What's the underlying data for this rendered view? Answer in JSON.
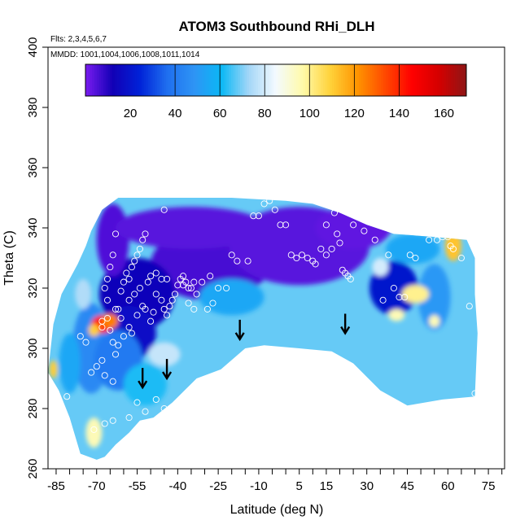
{
  "chart_data": {
    "type": "heatmap",
    "title": "ATOM3 Southbound RHi_DLH",
    "subtitle_flights": "Flts: 2,3,4,5,6,7",
    "subtitle_dates": "MMDD: 1001,1004,1006,1008,1011,1014",
    "xlabel": "Latitude (deg N)",
    "ylabel": "Theta (C)",
    "xlim": [
      -88,
      81
    ],
    "ylim": [
      260,
      400
    ],
    "x_tick_labels": [
      "-85",
      "-70",
      "-55",
      "-40",
      "-25",
      "-10",
      "5",
      "15",
      "30",
      "45",
      "60",
      "75"
    ],
    "x_tick_values": [
      -85,
      -70,
      -55,
      -40,
      -25,
      -10,
      5,
      15,
      30,
      45,
      60,
      75
    ],
    "x_minor_ticks": [
      -85,
      -80,
      -75,
      -70,
      -65,
      -60,
      -55,
      -50,
      -45,
      -40,
      -35,
      -30,
      -25,
      -20,
      -15,
      -10,
      -5,
      0,
      5,
      10,
      15,
      20,
      25,
      30,
      35,
      40,
      45,
      50,
      55,
      60,
      65,
      70,
      75,
      80
    ],
    "y_tick_values": [
      260,
      280,
      300,
      320,
      340,
      360,
      380,
      400
    ],
    "y_tick_labels": [
      "260",
      "280",
      "300",
      "320",
      "340",
      "360",
      "380",
      "400"
    ],
    "colorbar": {
      "min": 0,
      "max": 170,
      "tick_values": [
        20,
        40,
        60,
        80,
        100,
        120,
        140,
        160
      ],
      "tick_labels": [
        "20",
        "40",
        "60",
        "80",
        "100",
        "120",
        "140",
        "160"
      ],
      "divisions": [
        0,
        40,
        60,
        80,
        100,
        120,
        140,
        170
      ],
      "colors": [
        "#7a1cf0",
        "#1200b5",
        "#0022d8",
        "#1f6fef",
        "#2e94f5",
        "#0ab8f5",
        "#a3d6f7",
        "#f4faff",
        "#fffaa8",
        "#ffd23a",
        "#ff9400",
        "#ff4a00",
        "#ff0000",
        "#d40000",
        "#8e1616"
      ]
    },
    "boundary": [
      [
        -88,
        292
      ],
      [
        -86,
        308
      ],
      [
        -83,
        318
      ],
      [
        -77,
        328
      ],
      [
        -74,
        334
      ],
      [
        -72,
        339
      ],
      [
        -68,
        346
      ],
      [
        -62,
        350
      ],
      [
        -55,
        350
      ],
      [
        -40,
        350
      ],
      [
        -20,
        350
      ],
      [
        0,
        349
      ],
      [
        10,
        348
      ],
      [
        20,
        345
      ],
      [
        30,
        341
      ],
      [
        40,
        338
      ],
      [
        55,
        337
      ],
      [
        67,
        336
      ],
      [
        70,
        330
      ],
      [
        70,
        318
      ],
      [
        71,
        305
      ],
      [
        70,
        284
      ],
      [
        58,
        283
      ],
      [
        45,
        281
      ],
      [
        35,
        286
      ],
      [
        25,
        295
      ],
      [
        17,
        299
      ],
      [
        5,
        300
      ],
      [
        -8,
        301
      ],
      [
        -15,
        300
      ],
      [
        -24,
        293
      ],
      [
        -33,
        290
      ],
      [
        -42,
        282
      ],
      [
        -49,
        277
      ],
      [
        -54,
        276
      ],
      [
        -58,
        272
      ],
      [
        -63,
        268
      ],
      [
        -67,
        264
      ],
      [
        -70,
        263
      ],
      [
        -76,
        265
      ],
      [
        -80,
        277
      ],
      [
        -84,
        286
      ]
    ],
    "pockets": [
      {
        "x": -28,
        "y": 328,
        "rx": 22,
        "ry": 12,
        "value": 6
      },
      {
        "x": 5,
        "y": 334,
        "rx": 26,
        "ry": 13,
        "value": 4
      },
      {
        "x": -55,
        "y": 318,
        "rx": 14,
        "ry": 12,
        "value": 14
      },
      {
        "x": -64,
        "y": 336,
        "rx": 6,
        "ry": 12,
        "value": 5
      },
      {
        "x": -35,
        "y": 340,
        "rx": 28,
        "ry": 7,
        "value": 4
      },
      {
        "x": 25,
        "y": 340,
        "rx": 14,
        "ry": 7,
        "value": 3
      },
      {
        "x": -58,
        "y": 305,
        "rx": 10,
        "ry": 9,
        "value": 18
      },
      {
        "x": -72,
        "y": 300,
        "rx": 7,
        "ry": 15,
        "value": 45
      },
      {
        "x": -62,
        "y": 296,
        "rx": 9,
        "ry": 10,
        "value": 40
      },
      {
        "x": -52,
        "y": 288,
        "rx": 8,
        "ry": 7,
        "value": 62
      },
      {
        "x": 40,
        "y": 320,
        "rx": 9,
        "ry": 9,
        "value": 20
      },
      {
        "x": 55,
        "y": 317,
        "rx": 6,
        "ry": 11,
        "value": 50
      },
      {
        "x": 47,
        "y": 333,
        "rx": 10,
        "ry": 5,
        "value": 55
      },
      {
        "x": -20,
        "y": 317,
        "rx": 12,
        "ry": 6,
        "value": 55
      },
      {
        "x": -80,
        "y": 295,
        "rx": 4,
        "ry": 10,
        "value": 55
      },
      {
        "x": -68,
        "y": 308,
        "rx": 4,
        "ry": 3,
        "value": 140
      },
      {
        "x": -65,
        "y": 309,
        "rx": 3,
        "ry": 2.5,
        "value": 125
      },
      {
        "x": -71,
        "y": 306,
        "rx": 2,
        "ry": 2,
        "value": 110
      },
      {
        "x": -86,
        "y": 293,
        "rx": 1.5,
        "ry": 3,
        "value": 110
      },
      {
        "x": -71,
        "y": 272,
        "rx": 3,
        "ry": 5,
        "value": 95
      },
      {
        "x": 62,
        "y": 334,
        "rx": 3,
        "ry": 5,
        "value": 112
      },
      {
        "x": 48,
        "y": 318,
        "rx": 5,
        "ry": 3,
        "value": 100
      },
      {
        "x": 41,
        "y": 311,
        "rx": 3,
        "ry": 2,
        "value": 95
      },
      {
        "x": 55,
        "y": 309,
        "rx": 2,
        "ry": 2,
        "value": 95
      },
      {
        "x": 35,
        "y": 327,
        "rx": 3,
        "ry": 3,
        "value": 80
      },
      {
        "x": -45,
        "y": 298,
        "rx": 6,
        "ry": 4,
        "value": 78
      },
      {
        "x": -75,
        "y": 318,
        "rx": 3,
        "ry": 5,
        "value": 75
      }
    ],
    "background_value": 68,
    "observations": [
      [
        -81,
        284
      ],
      [
        -76,
        304
      ],
      [
        -74,
        302
      ],
      [
        -72,
        292
      ],
      [
        -70,
        294
      ],
      [
        -68,
        296
      ],
      [
        -67,
        291
      ],
      [
        -64,
        289
      ],
      [
        -68,
        307
      ],
      [
        -68,
        309
      ],
      [
        -66,
        310
      ],
      [
        -65,
        306
      ],
      [
        -64,
        302
      ],
      [
        -63,
        298
      ],
      [
        -62,
        301
      ],
      [
        -60,
        304
      ],
      [
        -58,
        307
      ],
      [
        -57,
        305
      ],
      [
        -55,
        311
      ],
      [
        -53,
        314
      ],
      [
        -52,
        313
      ],
      [
        -50,
        309
      ],
      [
        -49,
        312
      ],
      [
        -48,
        318
      ],
      [
        -46,
        316
      ],
      [
        -45,
        313
      ],
      [
        -44,
        311
      ],
      [
        -43,
        314
      ],
      [
        -42,
        316
      ],
      [
        -41,
        318
      ],
      [
        -40,
        321
      ],
      [
        -39,
        323
      ],
      [
        -38,
        324
      ],
      [
        -37,
        322
      ],
      [
        -36,
        320
      ],
      [
        -35,
        320
      ],
      [
        -34,
        322
      ],
      [
        -33,
        318
      ],
      [
        -61,
        319
      ],
      [
        -60,
        322
      ],
      [
        -59,
        325
      ],
      [
        -58,
        323
      ],
      [
        -57,
        327
      ],
      [
        -56,
        329
      ],
      [
        -55,
        331
      ],
      [
        -54,
        333
      ],
      [
        -53,
        336
      ],
      [
        -52,
        338
      ],
      [
        -63,
        338
      ],
      [
        -64,
        331
      ],
      [
        -65,
        327
      ],
      [
        -66,
        323
      ],
      [
        -67,
        320
      ],
      [
        -66,
        316
      ],
      [
        -63,
        313
      ],
      [
        -61,
        310
      ],
      [
        -62,
        313
      ],
      [
        -58,
        316
      ],
      [
        -56,
        318
      ],
      [
        -54,
        320
      ],
      [
        -51,
        322
      ],
      [
        -50,
        324
      ],
      [
        -48,
        325
      ],
      [
        -46,
        323
      ],
      [
        -44,
        323
      ],
      [
        -45,
        346
      ],
      [
        -38,
        321
      ],
      [
        -36,
        315
      ],
      [
        -34,
        313
      ],
      [
        -31,
        322
      ],
      [
        -28,
        324
      ],
      [
        -27,
        315
      ],
      [
        -29,
        313
      ],
      [
        -25,
        320
      ],
      [
        -22,
        320
      ],
      [
        -20,
        331
      ],
      [
        -18,
        329
      ],
      [
        -14,
        329
      ],
      [
        -12,
        344
      ],
      [
        -10,
        344
      ],
      [
        -8,
        348
      ],
      [
        -6,
        349
      ],
      [
        -4,
        346
      ],
      [
        -2,
        341
      ],
      [
        0,
        341
      ],
      [
        2,
        331
      ],
      [
        4,
        330
      ],
      [
        6,
        331
      ],
      [
        8,
        330
      ],
      [
        10,
        329
      ],
      [
        11,
        328
      ],
      [
        13,
        333
      ],
      [
        15,
        331
      ],
      [
        17,
        333
      ],
      [
        19,
        338
      ],
      [
        20,
        335
      ],
      [
        21,
        326
      ],
      [
        22,
        325
      ],
      [
        23,
        324
      ],
      [
        24,
        323
      ],
      [
        18,
        345
      ],
      [
        15,
        341
      ],
      [
        25,
        341
      ],
      [
        29,
        339
      ],
      [
        33,
        336
      ],
      [
        36,
        316
      ],
      [
        38,
        331
      ],
      [
        40,
        320
      ],
      [
        42,
        317
      ],
      [
        44,
        317
      ],
      [
        46,
        331
      ],
      [
        48,
        330
      ],
      [
        53,
        336
      ],
      [
        56,
        336
      ],
      [
        58,
        337
      ],
      [
        60,
        337
      ],
      [
        61,
        334
      ],
      [
        62,
        333
      ],
      [
        65,
        330
      ],
      [
        68,
        314
      ],
      [
        70,
        285
      ],
      [
        -71,
        273
      ],
      [
        -67,
        275
      ],
      [
        -64,
        276
      ],
      [
        -58,
        277
      ],
      [
        -55,
        282
      ],
      [
        -52,
        279
      ],
      [
        -48,
        283
      ],
      [
        -45,
        280
      ]
    ],
    "arrows": [
      [
        -53,
        287
      ],
      [
        -44,
        290
      ],
      [
        -17,
        303
      ],
      [
        22,
        305
      ]
    ]
  }
}
